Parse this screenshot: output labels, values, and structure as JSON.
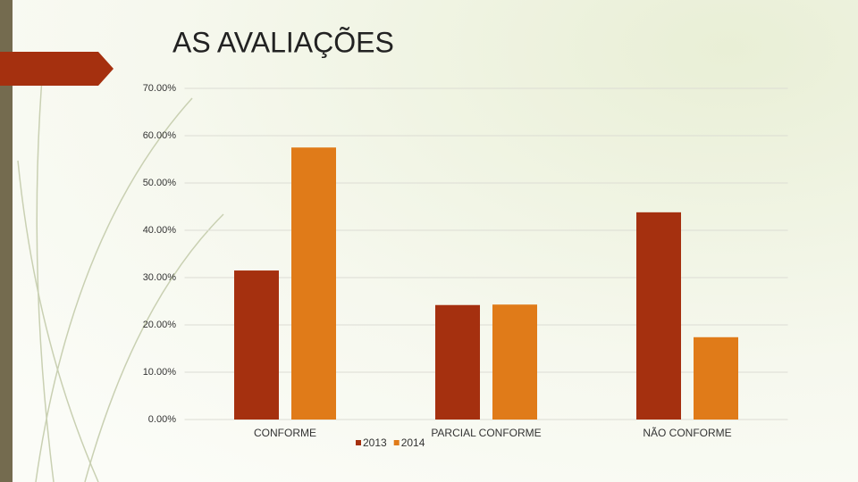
{
  "chart_data": {
    "type": "bar",
    "title": "AS AVALIAÇÕES",
    "categories": [
      "CONFORME",
      "PARCIAL CONFORME",
      "NÃO CONFORME"
    ],
    "series": [
      {
        "name": "2013",
        "color": "#a5300f",
        "values": [
          31.5,
          24.2,
          43.8
        ]
      },
      {
        "name": "2014",
        "color": "#e07b19",
        "values": [
          57.5,
          24.3,
          17.4
        ]
      }
    ],
    "ylim": [
      0,
      70
    ],
    "yticks": [
      {
        "value": 0,
        "label": "0.00%"
      },
      {
        "value": 10,
        "label": "10.00%"
      },
      {
        "value": 20,
        "label": "20.00%"
      },
      {
        "value": 30,
        "label": "30.00%"
      },
      {
        "value": 40,
        "label": "40.00%"
      },
      {
        "value": 50,
        "label": "50.00%"
      },
      {
        "value": 60,
        "label": "60.00%"
      },
      {
        "value": 70,
        "label": "70.00%"
      }
    ],
    "grid": true,
    "legend": "bottom"
  }
}
